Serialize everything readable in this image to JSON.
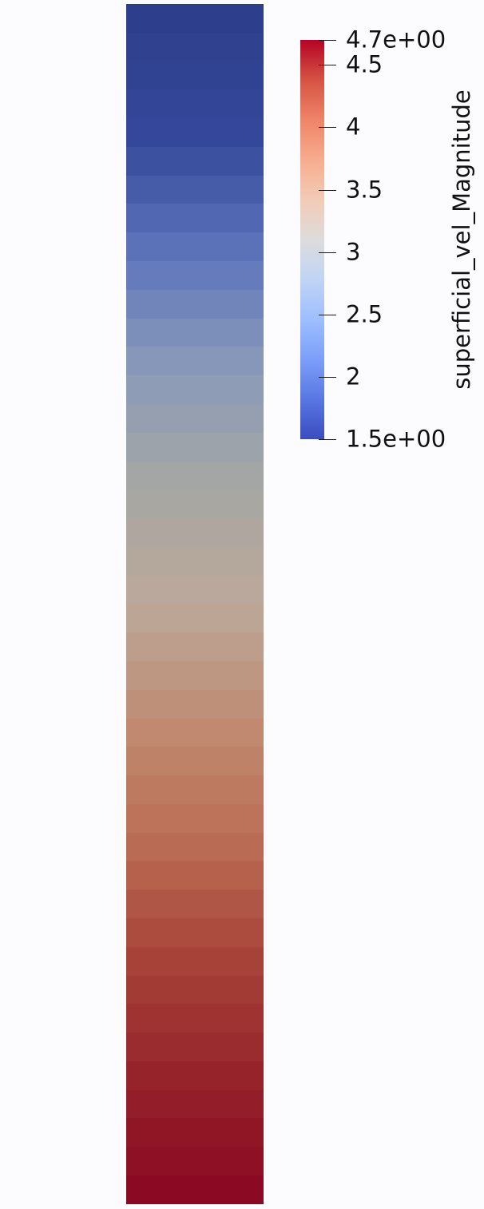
{
  "viewport": {
    "background": "#fcfcff"
  },
  "field_column": {
    "cell_count": 42,
    "gradient_stops": [
      "#2d3f8c",
      "#34479a",
      "#5d74bb",
      "#8a9ab9",
      "#a6a7a3",
      "#bca89a",
      "#c08c73",
      "#bb6e55",
      "#a8443a",
      "#96242a",
      "#8b0922"
    ]
  },
  "colorbar": {
    "title": "superficial_vel_Magnitude",
    "range": [
      1.5,
      4.7
    ],
    "gradient_stops": [
      "#3b4cc0",
      "#5977e3",
      "#7b9ff9",
      "#9ebeff",
      "#c0d4f5",
      "#dddcdc",
      "#f2cbb7",
      "#f7ac8e",
      "#ee8468",
      "#d65244",
      "#b40426"
    ],
    "ticks": [
      {
        "value": 4.7,
        "label": "4.7e+00"
      },
      {
        "value": 4.5,
        "label": "4.5"
      },
      {
        "value": 4.0,
        "label": "4"
      },
      {
        "value": 3.5,
        "label": "3.5"
      },
      {
        "value": 3.0,
        "label": "3"
      },
      {
        "value": 2.5,
        "label": "2.5"
      },
      {
        "value": 2.0,
        "label": "2"
      },
      {
        "value": 1.5,
        "label": "1.5e+00"
      }
    ]
  }
}
